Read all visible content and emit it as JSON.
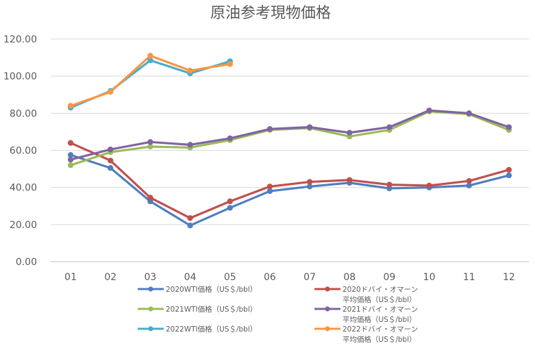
{
  "chart_data": {
    "type": "line",
    "title": "原油参考現物価格",
    "xlabel": "",
    "ylabel": "",
    "categories": [
      "01",
      "02",
      "03",
      "04",
      "05",
      "06",
      "07",
      "08",
      "09",
      "10",
      "11",
      "12"
    ],
    "ylim": [
      0,
      120
    ],
    "yticks": [
      "0.00",
      "20.00",
      "40.00",
      "60.00",
      "80.00",
      "100.00",
      "120.00"
    ],
    "grid": "horizontal",
    "legend_position": "bottom",
    "series": [
      {
        "name": "2020WTI価格（US＄/bbl）",
        "color": "#4f7fbf",
        "values": [
          57.5,
          50.5,
          32.5,
          19.5,
          29,
          38,
          40.5,
          42.5,
          39.5,
          40,
          41,
          46.5
        ]
      },
      {
        "name": "2020ドバイ・オマーン平均価格（US＄/bbl）",
        "color": "#c0504d",
        "values": [
          64,
          54.5,
          34.5,
          23.5,
          32.5,
          40.5,
          43,
          44,
          41.5,
          41,
          43.5,
          49.5
        ]
      },
      {
        "name": "2021WTI価格（US＄/bbl）",
        "color": "#9bbb59",
        "values": [
          52,
          59,
          62,
          61.5,
          65.5,
          71,
          72,
          67.5,
          71,
          81,
          79.5,
          71
        ]
      },
      {
        "name": "2021ドバイ・オマーン平均価格（US＄/bbl）",
        "color": "#8064a2",
        "values": [
          55,
          60.5,
          64.5,
          63,
          66.5,
          71.5,
          72.5,
          69.5,
          72.5,
          81.5,
          80,
          72.5
        ]
      },
      {
        "name": "2022WTI価格（US＄/bbl）",
        "color": "#4bacc6",
        "values": [
          83,
          92,
          108.5,
          101.5,
          108,
          null,
          null,
          null,
          null,
          null,
          null,
          null
        ]
      },
      {
        "name": "2022ドバイ・オマーン平均価格（US＄/bbl）",
        "color": "#f79646",
        "values": [
          84,
          91.5,
          111,
          103,
          106.5,
          null,
          null,
          null,
          null,
          null,
          null,
          null
        ]
      }
    ],
    "legend": [
      {
        "lines": [
          "2020WTI価格（US＄/bbl）"
        ]
      },
      {
        "lines": [
          "2020ドバイ・オマーン",
          "平均価格（US＄/bbl）"
        ]
      },
      {
        "lines": [
          "2021WTI価格（US＄/bbl）"
        ]
      },
      {
        "lines": [
          "2021ドバイ・オマーン",
          "平均価格（US＄/bbl）"
        ]
      },
      {
        "lines": [
          "2022WTI価格（US＄/bbl）"
        ]
      },
      {
        "lines": [
          "2022ドバイ・オマーン",
          "平均価格（US＄/bbl）"
        ]
      }
    ]
  }
}
